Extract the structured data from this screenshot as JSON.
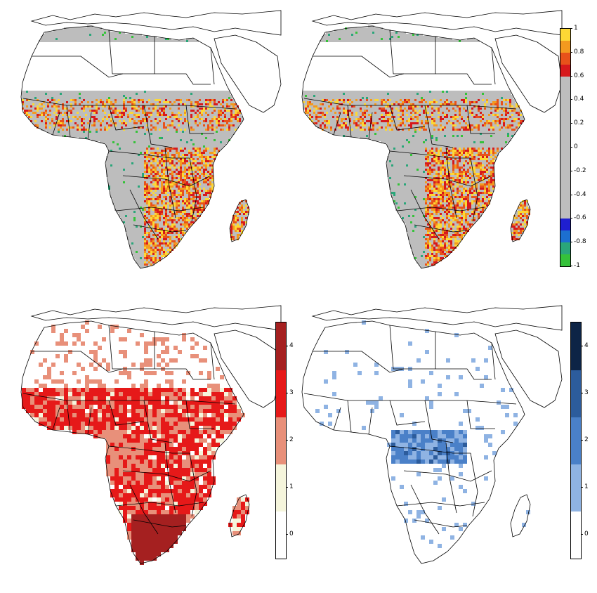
{
  "maps": [
    {
      "id": "map-tl",
      "style": "correlation",
      "seed": 11
    },
    {
      "id": "map-tr",
      "style": "correlation",
      "seed": 29
    },
    {
      "id": "map-bl",
      "style": "red_counts",
      "seed": 7
    },
    {
      "id": "map-br",
      "style": "blue_counts",
      "seed": 41
    }
  ],
  "colorbars": {
    "top": {
      "range": [
        -1,
        1
      ],
      "segments": [
        {
          "from": 0.6,
          "to": 1.0,
          "colors": [
            "#fdd835",
            "#f39a1f",
            "#e8521a",
            "#d7191c"
          ]
        },
        {
          "from": -0.6,
          "to": 0.6,
          "colors": [
            "#bdbdbd"
          ]
        },
        {
          "from": -1.0,
          "to": -0.6,
          "colors": [
            "#1f1fd0",
            "#1c6fd0",
            "#2aa67a",
            "#35c23a"
          ]
        }
      ],
      "ticks": [
        "1",
        "0.8",
        "0.6",
        "0.4",
        "0.2",
        "0",
        "-0.2",
        "-0.4",
        "-0.6",
        "-0.8",
        "-1"
      ]
    },
    "bottom_left": {
      "segments": [
        "#ffffff",
        "#f5f5dc",
        "#e8907a",
        "#e61919",
        "#a52020"
      ],
      "ticks": [
        "0",
        "1",
        "2",
        "3",
        "4"
      ]
    },
    "bottom_right": {
      "segments": [
        "#ffffff",
        "#8fb3e3",
        "#4a80c8",
        "#2c5c9c",
        "#0d2446"
      ],
      "ticks": [
        "0",
        "1",
        "2",
        "3",
        "4"
      ]
    }
  },
  "colors": {
    "land_gray": "#bdbdbd",
    "border": "#000000",
    "warm": [
      "#fdd835",
      "#f39a1f",
      "#e8521a",
      "#d7191c"
    ],
    "green": [
      "#35c23a",
      "#2aa67a"
    ],
    "red_classes": [
      "#ffffff",
      "#f5f5dc",
      "#e8907a",
      "#e61919",
      "#a52020"
    ],
    "blue_classes": [
      "#ffffff",
      "#8fb3e3",
      "#4a80c8",
      "#2c5c9c",
      "#0d2446"
    ]
  }
}
